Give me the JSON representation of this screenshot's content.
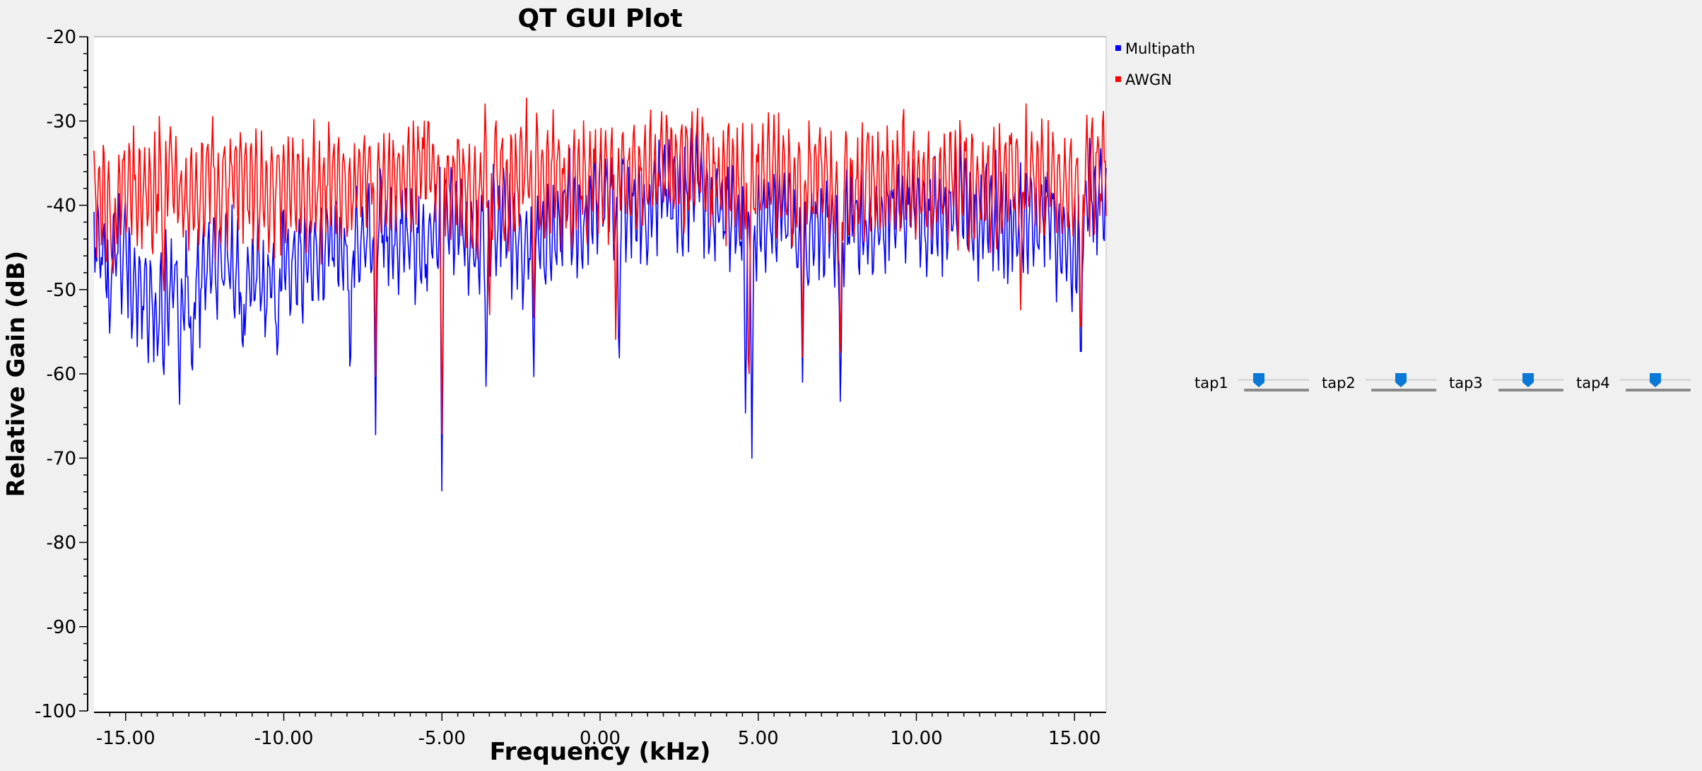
{
  "chart_data": {
    "type": "line",
    "title": "QT GUI Plot",
    "xlabel": "Frequency (kHz)",
    "ylabel": "Relative Gain (dB)",
    "xlim": [
      -16.0,
      16.0
    ],
    "ylim": [
      -100,
      -20
    ],
    "xticks": [
      -15,
      -10,
      -5,
      0,
      5,
      10,
      15
    ],
    "xtick_labels": [
      "-15.00",
      "-10.00",
      "-5.00",
      "0.00",
      "5.00",
      "10.00",
      "15.00"
    ],
    "yticks": [
      -20,
      -30,
      -40,
      -50,
      -60,
      -70,
      -80,
      -90,
      -100
    ],
    "ytick_labels": [
      "-20",
      "-30",
      "-40",
      "-50",
      "-60",
      "-70",
      "-80",
      "-90",
      "-100"
    ],
    "grid": false,
    "legend_position": "top-right, outside plot",
    "legend": [
      "Multipath",
      "AWGN"
    ],
    "series": [
      {
        "name": "Multipath",
        "color": "#0000ff",
        "x": [
          -16.0,
          -15.5,
          -15.0,
          -14.5,
          -14.0,
          -13.5,
          -13.0,
          -12.5,
          -12.0,
          -11.5,
          -11.0,
          -10.5,
          -10.0,
          -9.5,
          -9.0,
          -8.5,
          -8.0,
          -7.5,
          -7.0,
          -6.5,
          -6.0,
          -5.5,
          -5.0,
          -4.5,
          -4.0,
          -3.5,
          -3.0,
          -2.5,
          -2.0,
          -1.5,
          -1.0,
          -0.5,
          0.0,
          0.5,
          1.0,
          1.5,
          2.0,
          2.5,
          3.0,
          3.5,
          4.0,
          4.5,
          5.0,
          5.5,
          6.0,
          6.5,
          7.0,
          7.5,
          8.0,
          8.5,
          9.0,
          9.5,
          10.0,
          10.5,
          11.0,
          11.5,
          12.0,
          12.5,
          13.0,
          13.5,
          14.0,
          14.5,
          15.0,
          15.5,
          16.0
        ],
        "y": [
          -44,
          -47,
          -45,
          -50,
          -53,
          -49,
          -51,
          -48,
          -47,
          -49,
          -48,
          -50,
          -46,
          -47,
          -46,
          -44,
          -45,
          -43,
          -42,
          -44,
          -43,
          -46,
          -41,
          -42,
          -44,
          -43,
          -42,
          -46,
          -43,
          -44,
          -40,
          -43,
          -38,
          -41,
          -39,
          -42,
          -37,
          -40,
          -36,
          -41,
          -40,
          -44,
          -43,
          -41,
          -40,
          -45,
          -42,
          -44,
          -41,
          -43,
          -42,
          -41,
          -40,
          -42,
          -41,
          -40,
          -42,
          -41,
          -43,
          -42,
          -41,
          -44,
          -46,
          -38,
          -40
        ],
        "dips": [
          {
            "x": -15.5,
            "y": -56
          },
          {
            "x": -14.8,
            "y": -57
          },
          {
            "x": -13.8,
            "y": -62
          },
          {
            "x": -13.3,
            "y": -65
          },
          {
            "x": -12.9,
            "y": -62
          },
          {
            "x": -11.3,
            "y": -59
          },
          {
            "x": -10.2,
            "y": -60
          },
          {
            "x": -7.9,
            "y": -63
          },
          {
            "x": -7.1,
            "y": -68
          },
          {
            "x": -5.0,
            "y": -76
          },
          {
            "x": -3.6,
            "y": -64
          },
          {
            "x": -2.1,
            "y": -62
          },
          {
            "x": 0.6,
            "y": -62
          },
          {
            "x": 4.6,
            "y": -66
          },
          {
            "x": 4.8,
            "y": -70
          },
          {
            "x": 6.4,
            "y": -61
          },
          {
            "x": 7.6,
            "y": -66
          },
          {
            "x": 15.2,
            "y": -62
          }
        ]
      },
      {
        "name": "AWGN",
        "color": "#ff0000",
        "x": [
          -16.0,
          -15.5,
          -15.0,
          -14.5,
          -14.0,
          -13.5,
          -13.0,
          -12.5,
          -12.0,
          -11.5,
          -11.0,
          -10.5,
          -10.0,
          -9.5,
          -9.0,
          -8.5,
          -8.0,
          -7.5,
          -7.0,
          -6.5,
          -6.0,
          -5.5,
          -5.0,
          -4.5,
          -4.0,
          -3.5,
          -3.0,
          -2.5,
          -2.0,
          -1.5,
          -1.0,
          -0.5,
          0.0,
          0.5,
          1.0,
          1.5,
          2.0,
          2.5,
          3.0,
          3.5,
          4.0,
          4.5,
          5.0,
          5.5,
          6.0,
          6.5,
          7.0,
          7.5,
          8.0,
          8.5,
          9.0,
          9.5,
          10.0,
          10.5,
          11.0,
          11.5,
          12.0,
          12.5,
          13.0,
          13.5,
          14.0,
          14.5,
          15.0,
          15.5,
          16.0
        ],
        "y": [
          -38,
          -40,
          -37,
          -39,
          -38,
          -36,
          -40,
          -37,
          -38,
          -36,
          -37,
          -39,
          -38,
          -37,
          -39,
          -37,
          -38,
          -36,
          -37,
          -36,
          -37,
          -35,
          -38,
          -37,
          -39,
          -36,
          -38,
          -36,
          -37,
          -36,
          -38,
          -37,
          -36,
          -35,
          -37,
          -36,
          -35,
          -36,
          -34,
          -37,
          -36,
          -38,
          -37,
          -36,
          -38,
          -37,
          -36,
          -39,
          -38,
          -37,
          -38,
          -36,
          -37,
          -38,
          -36,
          -37,
          -39,
          -38,
          -37,
          -36,
          -38,
          -37,
          -38,
          -35,
          -37
        ],
        "dips": [
          {
            "x": -15.4,
            "y": -50
          },
          {
            "x": -13.8,
            "y": -53
          },
          {
            "x": -7.1,
            "y": -61
          },
          {
            "x": -5.0,
            "y": -69
          },
          {
            "x": -3.5,
            "y": -56
          },
          {
            "x": -2.1,
            "y": -55
          },
          {
            "x": 0.5,
            "y": -58
          },
          {
            "x": 4.7,
            "y": -66
          },
          {
            "x": 6.4,
            "y": -58
          },
          {
            "x": 7.6,
            "y": -60
          },
          {
            "x": 13.3,
            "y": -54
          },
          {
            "x": 15.2,
            "y": -60
          }
        ]
      }
    ]
  },
  "controls": {
    "sliders": [
      {
        "label": "tap1",
        "value": 0.25
      },
      {
        "label": "tap2",
        "value": 0.5
      },
      {
        "label": "tap3",
        "value": 0.5
      },
      {
        "label": "tap4",
        "value": 0.5
      }
    ]
  }
}
